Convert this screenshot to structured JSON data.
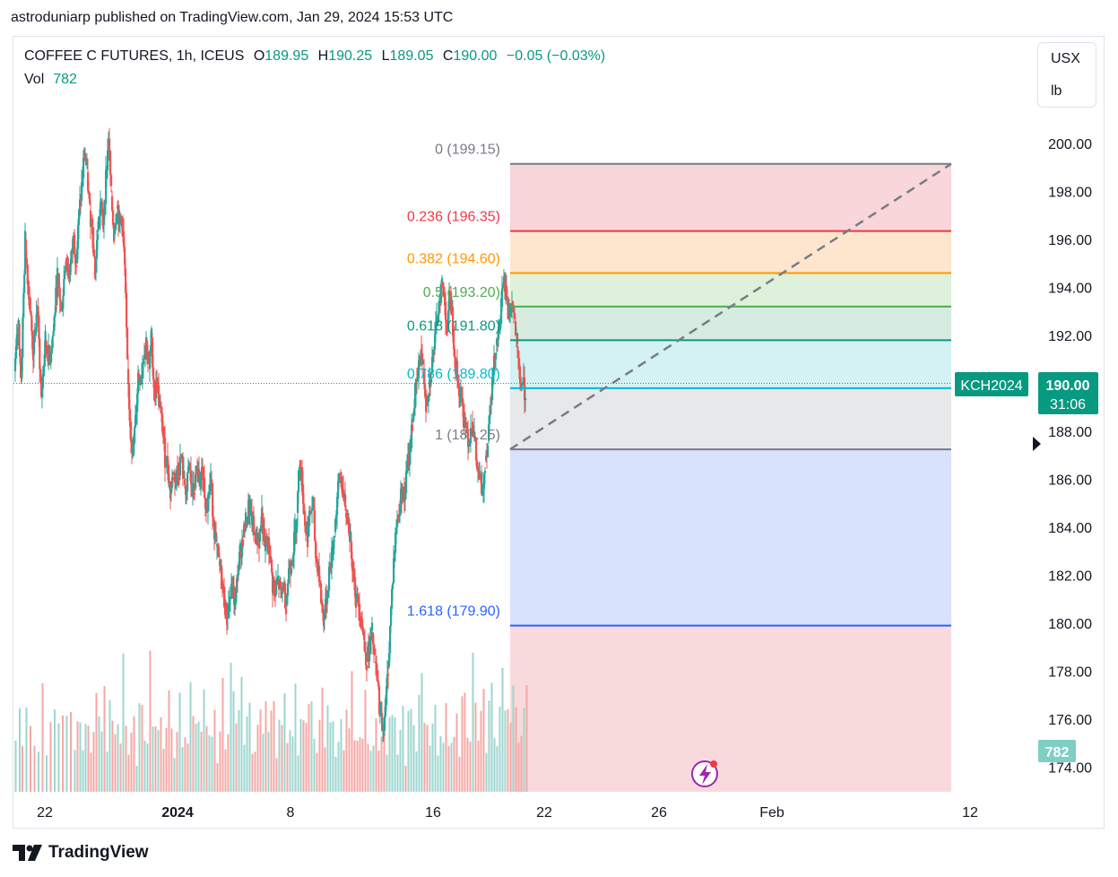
{
  "header": {
    "published": "astroduniarp published on TradingView.com, Jan 29, 2024 15:53 UTC",
    "symbol": "COFFEE C FUTURES, 1h, ICEUS",
    "o_label": "O",
    "o": "189.95",
    "h_label": "H",
    "h": "190.25",
    "l_label": "L",
    "l": "189.05",
    "c_label": "C",
    "c": "190.00",
    "change": "−0.05 (−0.03%)",
    "vol_label": "Vol",
    "vol": "782"
  },
  "units": {
    "currency": "USX",
    "unit": "lb"
  },
  "footer": {
    "brand": "TradingView"
  },
  "colors": {
    "up": "#26a69a",
    "down": "#ef5350",
    "accent": "#089981"
  },
  "chart_data": {
    "type": "candlestick",
    "ylim": [
      173,
      201.5
    ],
    "y_ticks": [
      "200.00",
      "198.00",
      "196.00",
      "194.00",
      "192.00",
      "190.00",
      "188.00",
      "186.00",
      "184.00",
      "182.00",
      "180.00",
      "178.00",
      "176.00",
      "174.00"
    ],
    "x_ticks": [
      "22",
      "2024",
      "8",
      "16",
      "22",
      "26",
      "Feb",
      "12"
    ],
    "last_price": {
      "symbol": "KCH2024",
      "price": "190.00",
      "countdown": "31:06"
    },
    "volume_badge": "782",
    "fib_levels": [
      {
        "label": "0 (199.15)",
        "value": 199.15,
        "color": "#787b86",
        "fill": "#f8cfd2"
      },
      {
        "label": "0.236 (196.35)",
        "value": 196.35,
        "color": "#f23645",
        "fill": "#fde2c4"
      },
      {
        "label": "0.382 (194.60)",
        "value": 194.6,
        "color": "#ff9800",
        "fill": "#d8eed4"
      },
      {
        "label": "0.5 (193.20)",
        "value": 193.2,
        "color": "#4caf50",
        "fill": "#cfe9dc"
      },
      {
        "label": "0.618 (191.80)",
        "value": 191.8,
        "color": "#089981",
        "fill": "#cdeff2"
      },
      {
        "label": "0.786 (189.80)",
        "value": 189.8,
        "color": "#00bcd4",
        "fill": "#e3e4e6"
      },
      {
        "label": "1 (187.25)",
        "value": 187.25,
        "color": "#787b86",
        "fill": "#d2ddfb"
      },
      {
        "label": "1.618 (179.90)",
        "value": 179.9,
        "color": "#2962ff",
        "fill": "#f8d4d6"
      }
    ],
    "fib_bottom": 173,
    "trend_line": {
      "from": [
        0,
        187.25
      ],
      "to": [
        1,
        199.15
      ]
    },
    "price_path": [
      [
        0,
        190.5
      ],
      [
        6,
        192.5
      ],
      [
        10,
        190.2
      ],
      [
        16,
        196.0
      ],
      [
        22,
        193.6
      ],
      [
        28,
        191.2
      ],
      [
        34,
        193.2
      ],
      [
        40,
        189.4
      ],
      [
        46,
        191.8
      ],
      [
        52,
        191.0
      ],
      [
        58,
        192.2
      ],
      [
        64,
        194.5
      ],
      [
        70,
        193.0
      ],
      [
        76,
        195.2
      ],
      [
        82,
        194.5
      ],
      [
        88,
        196.2
      ],
      [
        92,
        195.0
      ],
      [
        96,
        197.0
      ],
      [
        100,
        198.2
      ],
      [
        104,
        199.6
      ],
      [
        108,
        198.8
      ],
      [
        112,
        197.2
      ],
      [
        116,
        196.5
      ],
      [
        120,
        194.6
      ],
      [
        124,
        196.4
      ],
      [
        128,
        197.5
      ],
      [
        132,
        196.6
      ],
      [
        136,
        198.6
      ],
      [
        140,
        200.2
      ],
      [
        144,
        197.8
      ],
      [
        148,
        196.2
      ],
      [
        152,
        197.4
      ],
      [
        156,
        196.8
      ],
      [
        160,
        196.9
      ],
      [
        164,
        194.8
      ],
      [
        168,
        190.6
      ],
      [
        172,
        188.4
      ],
      [
        176,
        187.0
      ],
      [
        180,
        188.4
      ],
      [
        184,
        190.4
      ],
      [
        188,
        190.2
      ],
      [
        192,
        191.2
      ],
      [
        196,
        191.8
      ],
      [
        200,
        190.6
      ],
      [
        204,
        191.9
      ],
      [
        208,
        189.5
      ],
      [
        212,
        190.0
      ],
      [
        216,
        189.0
      ],
      [
        220,
        188.2
      ],
      [
        224,
        186.9
      ],
      [
        228,
        186.6
      ],
      [
        232,
        185.4
      ],
      [
        236,
        186.2
      ],
      [
        240,
        186.1
      ],
      [
        244,
        186.4
      ],
      [
        248,
        186.9
      ],
      [
        252,
        186.0
      ],
      [
        256,
        185.5
      ],
      [
        260,
        186.6
      ],
      [
        264,
        185.4
      ],
      [
        268,
        185.6
      ],
      [
        272,
        186.4
      ],
      [
        276,
        185.6
      ],
      [
        280,
        186.4
      ],
      [
        284,
        185.0
      ],
      [
        288,
        185.2
      ],
      [
        292,
        186.0
      ],
      [
        296,
        184.3
      ],
      [
        300,
        183.2
      ],
      [
        304,
        182.6
      ],
      [
        308,
        181.8
      ],
      [
        312,
        181.0
      ],
      [
        316,
        180.2
      ],
      [
        320,
        181.0
      ],
      [
        324,
        181.4
      ],
      [
        328,
        180.8
      ],
      [
        332,
        182.0
      ],
      [
        336,
        183.0
      ],
      [
        340,
        183.6
      ],
      [
        344,
        184.2
      ],
      [
        348,
        184.8
      ],
      [
        352,
        184.6
      ],
      [
        356,
        183.8
      ],
      [
        360,
        183.6
      ],
      [
        364,
        183.4
      ],
      [
        368,
        184.6
      ],
      [
        372,
        183.0
      ],
      [
        376,
        183.4
      ],
      [
        380,
        182.8
      ],
      [
        384,
        181.6
      ],
      [
        388,
        181.2
      ],
      [
        392,
        181.8
      ],
      [
        396,
        181.2
      ],
      [
        400,
        181.6
      ],
      [
        404,
        180.8
      ],
      [
        408,
        182.2
      ],
      [
        412,
        182.6
      ],
      [
        416,
        183.4
      ],
      [
        420,
        184.6
      ],
      [
        424,
        186.8
      ],
      [
        428,
        185.8
      ],
      [
        432,
        184.2
      ],
      [
        436,
        183.6
      ],
      [
        440,
        184.6
      ],
      [
        444,
        185.0
      ],
      [
        448,
        182.8
      ],
      [
        452,
        182.4
      ],
      [
        456,
        181.0
      ],
      [
        460,
        180.2
      ],
      [
        464,
        180.8
      ],
      [
        468,
        182.2
      ],
      [
        472,
        182.8
      ],
      [
        476,
        183.8
      ],
      [
        480,
        185.2
      ],
      [
        484,
        186.2
      ],
      [
        488,
        185.6
      ],
      [
        492,
        184.6
      ],
      [
        496,
        184.4
      ],
      [
        500,
        183.4
      ],
      [
        504,
        182.2
      ],
      [
        508,
        181.0
      ],
      [
        512,
        180.8
      ],
      [
        516,
        180.2
      ],
      [
        520,
        179.2
      ],
      [
        524,
        178.4
      ],
      [
        528,
        179.0
      ],
      [
        532,
        179.6
      ],
      [
        536,
        178.4
      ],
      [
        540,
        177.6
      ],
      [
        544,
        176.2
      ],
      [
        548,
        175.6
      ],
      [
        552,
        176.6
      ],
      [
        556,
        178.2
      ],
      [
        560,
        180.6
      ],
      [
        564,
        182.6
      ],
      [
        568,
        184.0
      ],
      [
        572,
        184.6
      ],
      [
        576,
        185.6
      ],
      [
        580,
        185.2
      ],
      [
        584,
        186.4
      ],
      [
        588,
        187.2
      ],
      [
        592,
        188.4
      ],
      [
        596,
        189.6
      ],
      [
        600,
        190.2
      ],
      [
        604,
        191.4
      ],
      [
        608,
        190.6
      ],
      [
        612,
        189.2
      ],
      [
        616,
        189.8
      ],
      [
        620,
        190.6
      ],
      [
        624,
        191.4
      ],
      [
        628,
        192.4
      ],
      [
        632,
        193.6
      ],
      [
        636,
        194.2
      ],
      [
        640,
        193.4
      ],
      [
        644,
        192.2
      ],
      [
        648,
        193.8
      ],
      [
        652,
        192.4
      ],
      [
        656,
        190.8
      ],
      [
        660,
        190.0
      ],
      [
        664,
        189.4
      ],
      [
        668,
        188.6
      ],
      [
        672,
        188.2
      ],
      [
        676,
        187.6
      ],
      [
        680,
        188.4
      ],
      [
        684,
        187.8
      ],
      [
        688,
        186.4
      ],
      [
        692,
        186.0
      ],
      [
        696,
        185.4
      ],
      [
        700,
        186.8
      ],
      [
        704,
        187.6
      ],
      [
        708,
        189.4
      ],
      [
        712,
        190.4
      ],
      [
        716,
        191.6
      ],
      [
        720,
        192.2
      ],
      [
        724,
        193.2
      ],
      [
        728,
        194.2
      ],
      [
        732,
        193.6
      ],
      [
        736,
        193.0
      ],
      [
        740,
        193.4
      ],
      [
        744,
        192.6
      ],
      [
        748,
        191.2
      ],
      [
        752,
        190.0
      ],
      [
        756,
        190.0
      ],
      [
        760,
        189.6
      ]
    ],
    "volume_rel": [
      0.45,
      0.7,
      0.55,
      0.9,
      0.6,
      0.4,
      0.5,
      0.75,
      0.3,
      0.65,
      0.85,
      0.5,
      0.6,
      0.95,
      0.7,
      0.45,
      0.55,
      0.8,
      0.35,
      0.6,
      0.75,
      0.5,
      0.4,
      0.65,
      0.9,
      0.55,
      0.7,
      0.45,
      0.85,
      0.6
    ]
  }
}
